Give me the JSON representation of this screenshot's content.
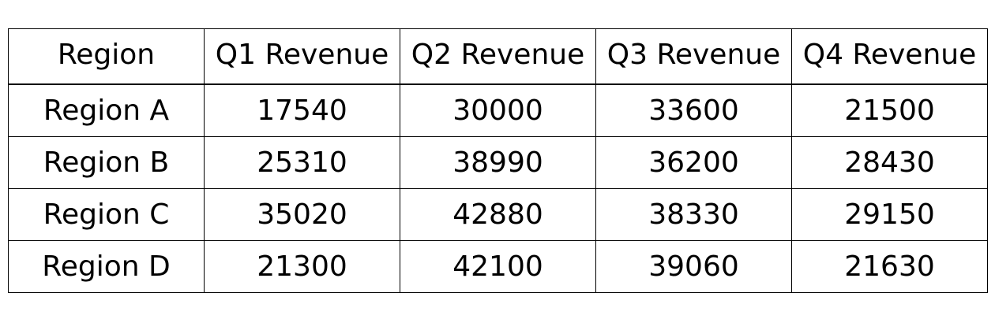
{
  "chart_data": {
    "type": "table",
    "columns": [
      "Region",
      "Q1 Revenue",
      "Q2 Revenue",
      "Q3 Revenue",
      "Q4 Revenue"
    ],
    "rows": [
      [
        "Region A",
        "17540",
        "30000",
        "33600",
        "21500"
      ],
      [
        "Region B",
        "25310",
        "38990",
        "36200",
        "28430"
      ],
      [
        "Region C",
        "35020",
        "42880",
        "38330",
        "29150"
      ],
      [
        "Region D",
        "21300",
        "42100",
        "39060",
        "21630"
      ]
    ],
    "title": "",
    "grid": true
  }
}
